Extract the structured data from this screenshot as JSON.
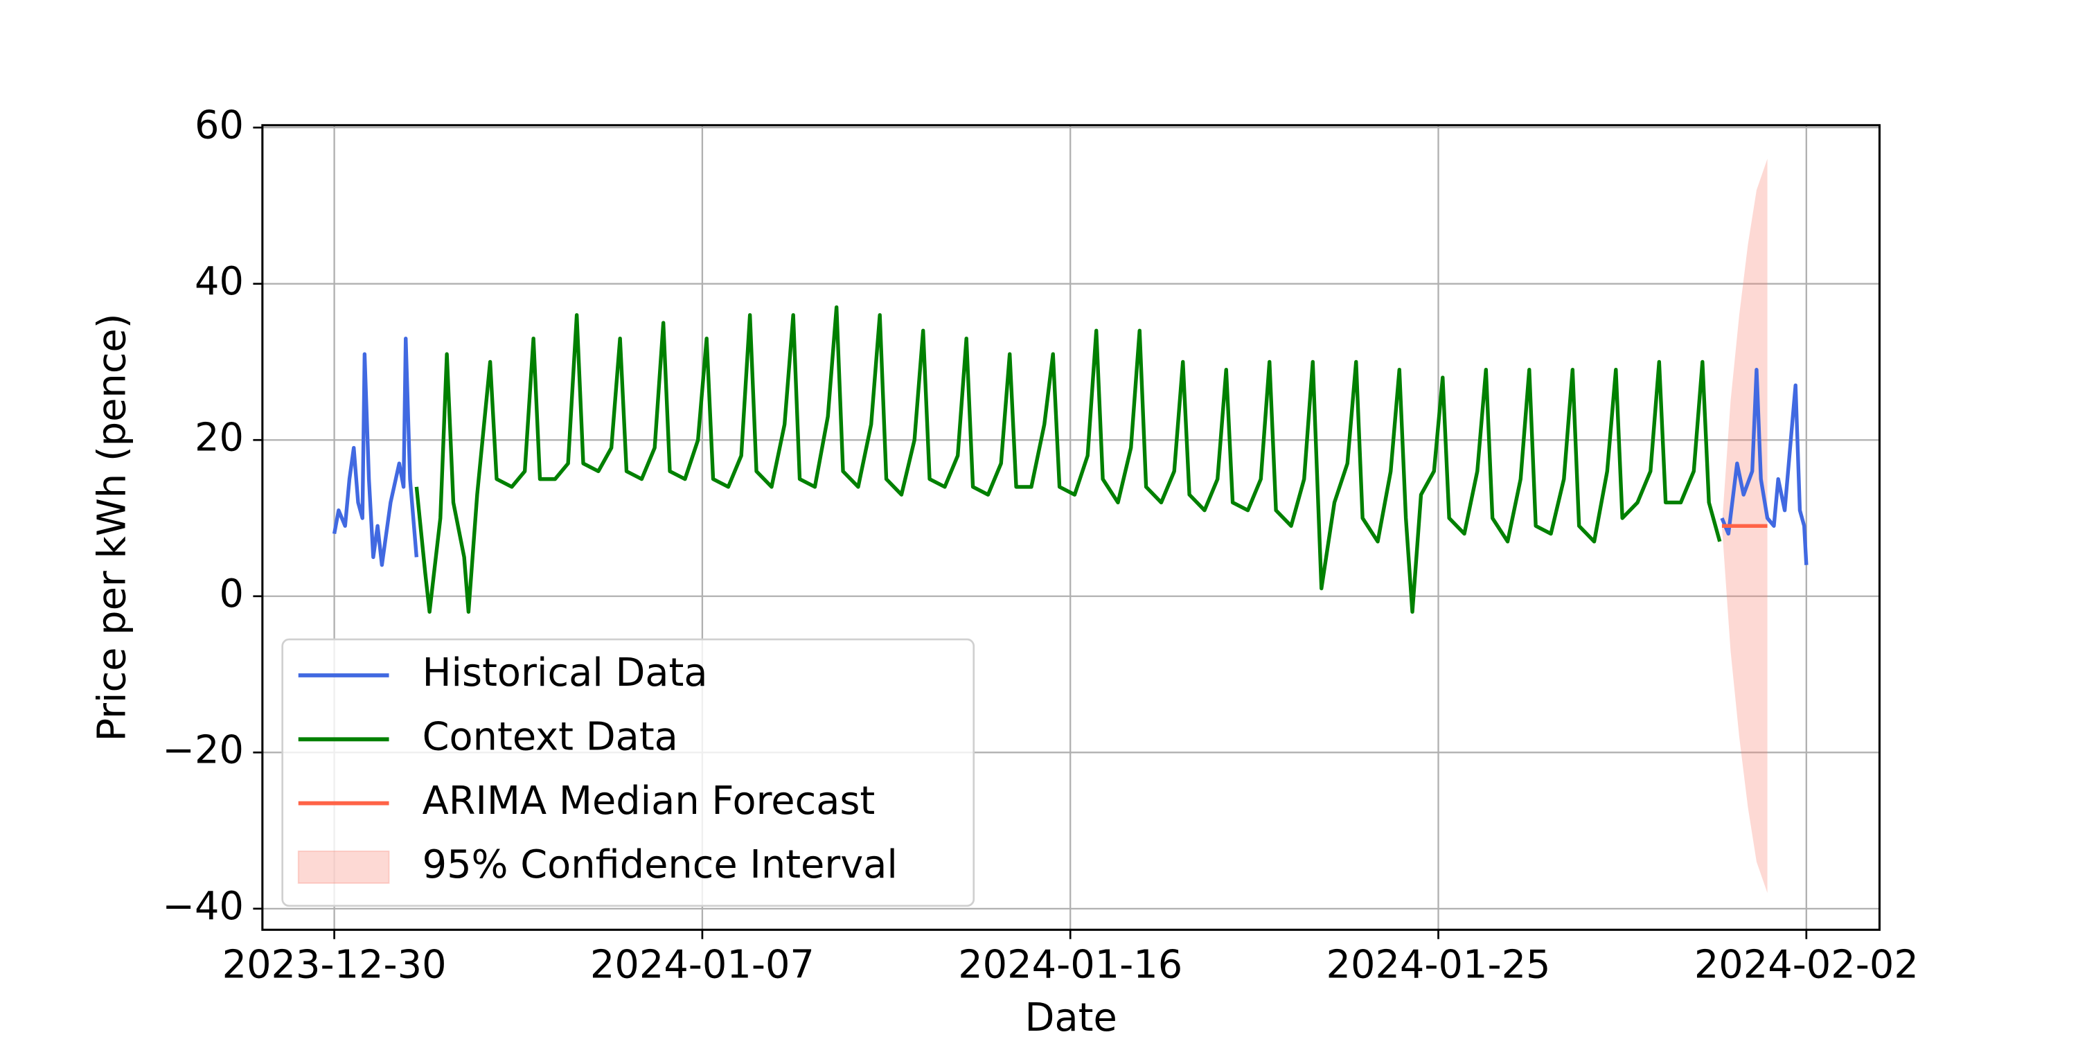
{
  "chart_data": {
    "type": "line",
    "xlabel": "Date",
    "ylabel": "Price per kWh (pence)",
    "xlim": [
      -1.66,
      35.69
    ],
    "ylim": [
      -42.7,
      60.3
    ],
    "xticks": [
      {
        "value": 0,
        "label": "2023-12-30"
      },
      {
        "value": 8.5,
        "label": "2024-01-07"
      },
      {
        "value": 17,
        "label": "2024-01-16"
      },
      {
        "value": 25.5,
        "label": "2024-01-25"
      },
      {
        "value": 34,
        "label": "2024-02-02"
      }
    ],
    "yticks": [
      {
        "value": -40,
        "label": "−40"
      },
      {
        "value": -20,
        "label": "−20"
      },
      0,
      20,
      40,
      60
    ],
    "grid": true,
    "legend": "lower left",
    "series": [
      {
        "name": "Historical Data",
        "color": "#4169e1",
        "x": [
          0,
          0.1,
          0.25,
          0.35,
          0.45,
          0.55,
          0.65,
          0.7,
          0.8,
          0.9,
          1.0,
          1.1,
          1.3,
          1.5,
          1.6,
          1.65,
          1.75,
          1.9,
          1.95,
          32.05,
          32.2,
          32.4,
          32.55,
          32.75,
          32.85,
          32.95,
          33.1,
          33.25,
          33.35,
          33.5,
          33.75,
          33.85,
          33.95,
          34.0
        ],
        "values": [
          8,
          11,
          9,
          15,
          19,
          12,
          10,
          31,
          15,
          5,
          9,
          4,
          12,
          17,
          14,
          33,
          15,
          5,
          null,
          10,
          8,
          17,
          13,
          16,
          29,
          15,
          10,
          9,
          15,
          11,
          27,
          11,
          9,
          4
        ]
      },
      {
        "name": "Context Data",
        "color": "#008000",
        "x": [
          1.9,
          2.1,
          2.2,
          2.45,
          2.6,
          2.75,
          3.0,
          3.1,
          3.3,
          3.6,
          3.75,
          4.1,
          4.4,
          4.6,
          4.75,
          5.1,
          5.4,
          5.6,
          5.75,
          6.1,
          6.4,
          6.6,
          6.75,
          7.1,
          7.4,
          7.6,
          7.75,
          8.1,
          8.4,
          8.6,
          8.75,
          9.1,
          9.4,
          9.6,
          9.75,
          10.1,
          10.4,
          10.6,
          10.75,
          11.1,
          11.4,
          11.6,
          11.75,
          12.1,
          12.4,
          12.6,
          12.75,
          13.1,
          13.4,
          13.6,
          13.75,
          14.1,
          14.4,
          14.6,
          14.75,
          15.1,
          15.4,
          15.6,
          15.75,
          16.1,
          16.4,
          16.6,
          16.75,
          17.1,
          17.4,
          17.6,
          17.75,
          18.1,
          18.4,
          18.6,
          18.75,
          19.1,
          19.4,
          19.6,
          19.75,
          20.1,
          20.4,
          20.6,
          20.75,
          21.1,
          21.4,
          21.6,
          21.75,
          22.1,
          22.4,
          22.6,
          22.8,
          23.1,
          23.4,
          23.6,
          23.75,
          24.1,
          24.4,
          24.6,
          24.75,
          24.9,
          25.1,
          25.4,
          25.6,
          25.75,
          26.1,
          26.4,
          26.6,
          26.75,
          27.1,
          27.4,
          27.6,
          27.75,
          28.1,
          28.4,
          28.6,
          28.75,
          29.1,
          29.4,
          29.6,
          29.75,
          30.1,
          30.4,
          30.6,
          30.75,
          31.1,
          31.4,
          31.6,
          31.75,
          32.0
        ],
        "values": [
          14,
          3,
          -2,
          10,
          31,
          12,
          5,
          -2,
          13,
          30,
          15,
          14,
          16,
          33,
          15,
          15,
          17,
          36,
          17,
          16,
          19,
          33,
          16,
          15,
          19,
          35,
          16,
          15,
          20,
          33,
          15,
          14,
          18,
          36,
          16,
          14,
          22,
          36,
          15,
          14,
          23,
          37,
          16,
          14,
          22,
          36,
          15,
          13,
          20,
          34,
          15,
          14,
          18,
          33,
          14,
          13,
          17,
          31,
          14,
          14,
          22,
          31,
          14,
          13,
          18,
          34,
          15,
          12,
          19,
          34,
          14,
          12,
          16,
          30,
          13,
          11,
          15,
          29,
          12,
          11,
          15,
          30,
          11,
          9,
          15,
          30,
          1,
          12,
          17,
          30,
          10,
          7,
          16,
          29,
          10,
          -2,
          13,
          16,
          28,
          10,
          8,
          16,
          29,
          10,
          7,
          15,
          29,
          9,
          8,
          15,
          29,
          9,
          7,
          16,
          29,
          10,
          12,
          16,
          30,
          12,
          12,
          16,
          30,
          12,
          7
        ]
      },
      {
        "name": "ARIMA Median Forecast",
        "color": "#ff6347",
        "x": [
          32.05,
          33.1
        ],
        "values": [
          9,
          9
        ]
      }
    ],
    "band": {
      "name": "95% Confidence Interval",
      "color": "#fa8072",
      "x": [
        32.05,
        32.25,
        32.45,
        32.65,
        32.85,
        33.1
      ],
      "lower": [
        9,
        -7,
        -18,
        -27,
        -34,
        -38
      ],
      "upper": [
        9,
        25,
        36,
        45,
        52,
        56
      ]
    }
  }
}
